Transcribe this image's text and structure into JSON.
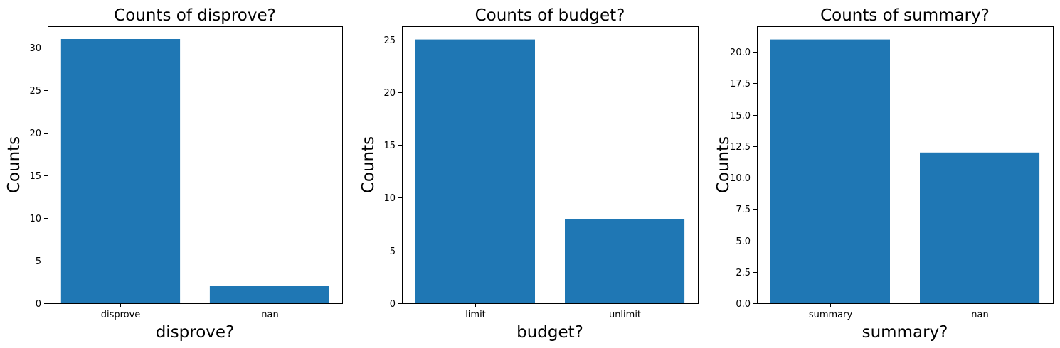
{
  "figure": {
    "bar_color": "#1f77b4",
    "background": "#ffffff"
  },
  "chart_data": [
    {
      "type": "bar",
      "title": "Counts of disprove?",
      "xlabel": "disprove?",
      "ylabel": "Counts",
      "categories": [
        "disprove",
        "nan"
      ],
      "values": [
        31,
        2
      ],
      "ylim": [
        0,
        32.5
      ],
      "yticks": [
        0,
        5,
        10,
        15,
        20,
        25,
        30
      ],
      "ytick_labels": [
        "0",
        "5",
        "10",
        "15",
        "20",
        "25",
        "30"
      ],
      "grid": false,
      "legend": "none"
    },
    {
      "type": "bar",
      "title": "Counts of budget?",
      "xlabel": "budget?",
      "ylabel": "Counts",
      "categories": [
        "limit",
        "unlimit"
      ],
      "values": [
        25,
        8
      ],
      "ylim": [
        0,
        26.25
      ],
      "yticks": [
        0,
        5,
        10,
        15,
        20,
        25
      ],
      "ytick_labels": [
        "0",
        "5",
        "10",
        "15",
        "20",
        "25"
      ],
      "grid": false,
      "legend": "none"
    },
    {
      "type": "bar",
      "title": "Counts of summary?",
      "xlabel": "summary?",
      "ylabel": "Counts",
      "categories": [
        "summary",
        "nan"
      ],
      "values": [
        21,
        12
      ],
      "ylim": [
        0,
        22.05
      ],
      "yticks": [
        0,
        2.5,
        5,
        7.5,
        10,
        12.5,
        15,
        17.5,
        20
      ],
      "ytick_labels": [
        "0.0",
        "2.5",
        "5.0",
        "7.5",
        "10.0",
        "12.5",
        "15.0",
        "17.5",
        "20.0"
      ],
      "grid": false,
      "legend": "none"
    }
  ]
}
